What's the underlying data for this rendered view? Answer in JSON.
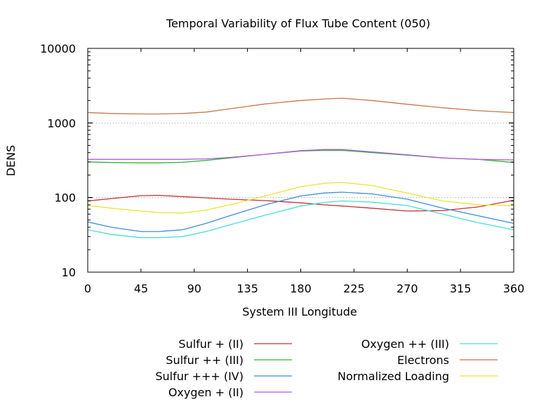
{
  "chart_data": {
    "type": "line",
    "title": "Temporal Variability of Flux Tube Content (050)",
    "xlabel": "System III Longitude",
    "ylabel": "DENS",
    "xlim": [
      0,
      360
    ],
    "ylim": [
      10,
      10000
    ],
    "yscale": "log",
    "xticks": [
      0,
      45,
      90,
      135,
      180,
      225,
      270,
      315,
      360
    ],
    "xtick_labels": [
      "0",
      "45",
      "90",
      "135",
      "180",
      "225",
      "270",
      "315",
      "360"
    ],
    "yticks": [
      10,
      100,
      1000,
      10000
    ],
    "ytick_labels": [
      "10",
      "100",
      "1000",
      "10000"
    ],
    "grid": "dotted at 100 and 1000",
    "legend_position": "bottom",
    "x": [
      0,
      20,
      45,
      60,
      80,
      100,
      120,
      150,
      180,
      200,
      215,
      240,
      270,
      300,
      330,
      360
    ],
    "series": [
      {
        "name": "Sulfur + (II)",
        "color": "#c83232",
        "values": [
          90,
          97,
          106,
          107,
          103,
          99,
          95,
          91,
          85,
          80,
          77,
          72,
          66,
          67,
          75,
          92
        ]
      },
      {
        "name": "Sulfur ++ (III)",
        "color": "#32b432",
        "values": [
          300,
          295,
          292,
          292,
          297,
          315,
          340,
          380,
          420,
          430,
          430,
          400,
          370,
          340,
          325,
          295
        ]
      },
      {
        "name": "Sulfur +++ (IV)",
        "color": "#3c8cdc",
        "values": [
          47,
          40,
          35,
          35,
          37,
          45,
          57,
          80,
          105,
          115,
          118,
          112,
          95,
          72,
          57,
          45
        ]
      },
      {
        "name": "Oxygen + (II)",
        "color": "#b45adc",
        "values": [
          325,
          325,
          325,
          325,
          325,
          330,
          345,
          380,
          425,
          440,
          440,
          410,
          375,
          340,
          325,
          320
        ]
      },
      {
        "name": "Oxygen ++ (III)",
        "color": "#46dcdc",
        "values": [
          37,
          32,
          29,
          29,
          30,
          35,
          43,
          58,
          77,
          86,
          90,
          87,
          78,
          60,
          46,
          37
        ]
      },
      {
        "name": "Electrons",
        "color": "#c87846",
        "values": [
          1380,
          1340,
          1320,
          1320,
          1340,
          1400,
          1550,
          1800,
          2000,
          2100,
          2150,
          2000,
          1780,
          1600,
          1460,
          1380
        ]
      },
      {
        "name": "Normalized Loading",
        "color": "#e6e632",
        "values": [
          78,
          72,
          66,
          63,
          62,
          68,
          80,
          105,
          140,
          155,
          160,
          145,
          115,
          90,
          80,
          78
        ]
      }
    ]
  }
}
